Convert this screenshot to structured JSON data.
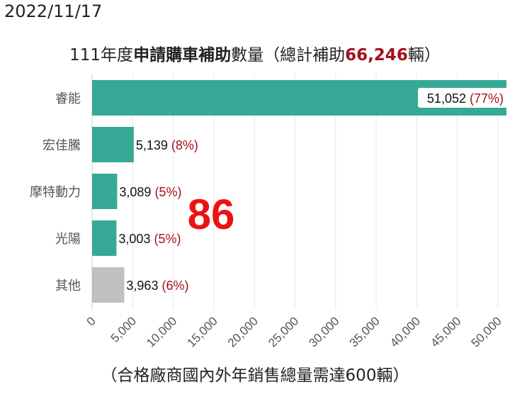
{
  "date": "2022/11/17",
  "title": {
    "prefix": "111年度",
    "bold": "申請購車補助",
    "middle": "數量（總計補助",
    "total": "66,246",
    "suffix": "輛）"
  },
  "overlay_number": "86",
  "footnote": "（合格廠商國內外年銷售總量需達600輛）",
  "colors": {
    "bar": "#35a996",
    "other_bar": "#c0bfc1",
    "percent": "#a3101b",
    "overlay": "#ee1111",
    "grid": "#e6e6e6"
  },
  "chart_data": {
    "type": "bar",
    "orientation": "horizontal",
    "categories": [
      "睿能",
      "宏佳騰",
      "摩特動力",
      "光陽",
      "其他"
    ],
    "values": [
      51052,
      5139,
      3089,
      3003,
      3963
    ],
    "value_labels": [
      "51,052",
      "5,139",
      "3,089",
      "3,003",
      "3,963"
    ],
    "percent_labels": [
      "(77%)",
      "(8%)",
      "(5%)",
      "(5%)",
      "(6%)"
    ],
    "x_ticks": [
      0,
      5000,
      10000,
      15000,
      20000,
      25000,
      30000,
      35000,
      40000,
      45000,
      50000
    ],
    "x_tick_labels": [
      "0",
      "5,000",
      "10,000",
      "15,000",
      "20,000",
      "25,000",
      "30,000",
      "35,000",
      "40,000",
      "45,000",
      "50,000"
    ],
    "xlim": [
      0,
      51052
    ],
    "grid": true,
    "legend": "none"
  }
}
